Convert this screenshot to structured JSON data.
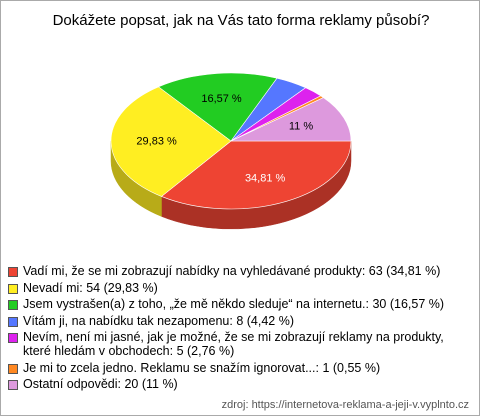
{
  "chart_data": {
    "type": "pie",
    "title": "Dokážete popsat, jak na Vás tato forma reklamy působí?",
    "legend_labels": [
      "Vadí mi, že se mi zobrazují nabídky na vyhledávané produkty: 63 (34,81 %)",
      "Nevadí mi: 54 (29,83 %)",
      "Jsem vystrašen(a) z toho, „že mě někdo sleduje“ na internetu.: 30 (16,57 %)",
      "Vítám ji, na nabídku tak nezapomenu: 8 (4,42 %)",
      "Nevím, není mi jasné, jak je možné, že se mi zobrazují reklamy na produkty, které hledám v obchodech: 5 (2,76 %)",
      "Je mi to zcela jedno. Reklamu se snažím ignorovat...: 1 (0,55 %)",
      "Ostatní odpovědi: 20 (11 %)"
    ],
    "values": [
      34.81,
      29.83,
      16.57,
      4.42,
      2.76,
      0.55,
      11
    ],
    "value_labels": [
      "34,81 %",
      "29,83 %",
      "16,57 %",
      null,
      null,
      null,
      "11 %"
    ],
    "colors": [
      "#ee4433",
      "#ffee22",
      "#22cc22",
      "#5577ff",
      "#dd22ee",
      "#ff8822",
      "#dd99dd"
    ],
    "source": "zdroj: https://internetova-reklama-a-jeji-v.vyplnto.cz"
  }
}
